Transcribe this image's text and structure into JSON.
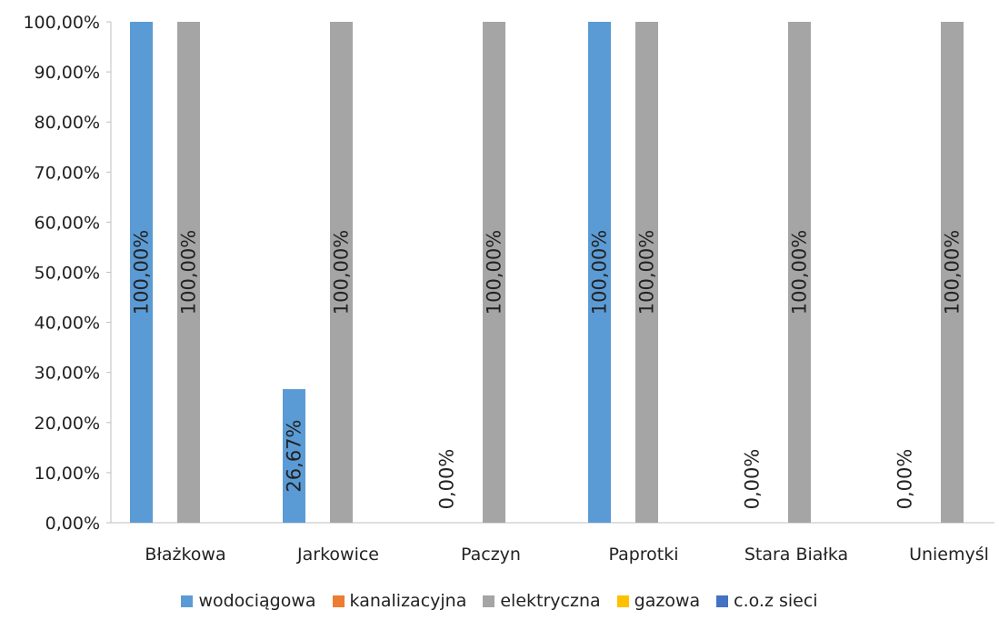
{
  "chart_data": {
    "type": "bar",
    "title": "",
    "xlabel": "",
    "ylabel": "",
    "ylim": [
      0,
      100
    ],
    "y_ticks": [
      "0,00%",
      "10,00%",
      "20,00%",
      "30,00%",
      "40,00%",
      "50,00%",
      "60,00%",
      "70,00%",
      "80,00%",
      "90,00%",
      "100,00%"
    ],
    "categories": [
      "Błażkowa",
      "Jarkowice",
      "Paczyn",
      "Paprotki",
      "Stara Białka",
      "Uniemyśl"
    ],
    "grid": false,
    "legend_position": "bottom",
    "series": [
      {
        "name": "wodociągowa",
        "color": "#5B9BD5",
        "values": [
          100,
          26.67,
          0,
          100,
          0,
          0
        ],
        "labels": [
          "100,00%",
          "26,67%",
          "0,00%",
          "100,00%",
          "0,00%",
          "0,00%"
        ]
      },
      {
        "name": "kanalizacyjna",
        "color": "#ED7D31",
        "values": [
          null,
          null,
          null,
          null,
          null,
          null
        ],
        "labels": [
          "",
          "",
          "",
          "",
          "",
          ""
        ]
      },
      {
        "name": "elektryczna",
        "color": "#A5A5A5",
        "values": [
          100,
          100,
          100,
          100,
          100,
          100
        ],
        "labels": [
          "100,00%",
          "100,00%",
          "100,00%",
          "100,00%",
          "100,00%",
          "100,00%"
        ]
      },
      {
        "name": "gazowa",
        "color": "#FFC000",
        "values": [
          null,
          null,
          null,
          null,
          null,
          null
        ],
        "labels": [
          "",
          "",
          "",
          "",
          "",
          ""
        ]
      },
      {
        "name": "c.o.z sieci",
        "color": "#4472C4",
        "values": [
          null,
          null,
          null,
          null,
          null,
          null
        ],
        "labels": [
          "",
          "",
          "",
          "",
          "",
          ""
        ]
      }
    ]
  }
}
